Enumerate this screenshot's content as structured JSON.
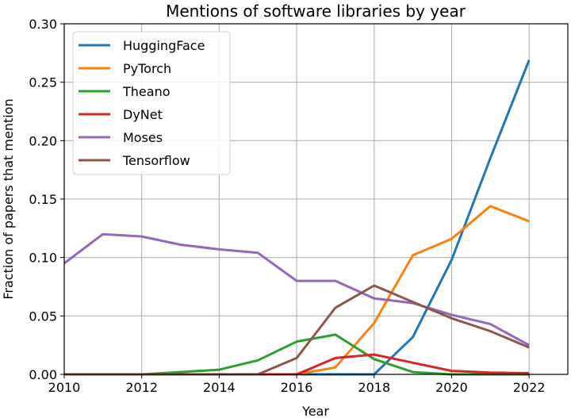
{
  "chart_data": {
    "type": "line",
    "title": "Mentions of software libraries by year",
    "xlabel": "Year",
    "ylabel": "Fraction of papers that mention",
    "x": [
      2010,
      2011,
      2012,
      2013,
      2014,
      2015,
      2016,
      2017,
      2018,
      2019,
      2020,
      2021,
      2022
    ],
    "xlim": [
      2010,
      2023
    ],
    "ylim": [
      0.0,
      0.3
    ],
    "xticks": [
      "2010",
      "2012",
      "2014",
      "2016",
      "2018",
      "2020",
      "2022"
    ],
    "yticks": [
      "0.00",
      "0.05",
      "0.10",
      "0.15",
      "0.20",
      "0.25",
      "0.30"
    ],
    "grid": true,
    "legend_position": "upper left",
    "series": [
      {
        "name": "HuggingFace",
        "color": "#1f77b4",
        "values": [
          0,
          0,
          0,
          0,
          0,
          0,
          0,
          0,
          0,
          0.032,
          0.098,
          0.185,
          0.269
        ]
      },
      {
        "name": "PyTorch",
        "color": "#ff7f0e",
        "values": [
          0,
          0,
          0,
          0,
          0,
          0,
          0,
          0.006,
          0.044,
          0.102,
          0.116,
          0.144,
          0.131
        ]
      },
      {
        "name": "Theano",
        "color": "#2ca02c",
        "values": [
          0,
          0,
          0,
          0.002,
          0.004,
          0.012,
          0.028,
          0.034,
          0.013,
          0.002,
          0.0,
          0.0,
          0.0
        ]
      },
      {
        "name": "DyNet",
        "color": "#d62728",
        "values": [
          0,
          0,
          0,
          0,
          0,
          0,
          0,
          0.014,
          0.017,
          0.01,
          0.003,
          0.0015,
          0.001
        ]
      },
      {
        "name": "Moses",
        "color": "#9467bd",
        "values": [
          0.095,
          0.12,
          0.118,
          0.111,
          0.107,
          0.104,
          0.08,
          0.08,
          0.065,
          0.061,
          0.051,
          0.043,
          0.025
        ]
      },
      {
        "name": "Tensorflow",
        "color": "#8c564b",
        "values": [
          0,
          0,
          0,
          0,
          0,
          0,
          0.014,
          0.057,
          0.076,
          0.062,
          0.048,
          0.037,
          0.023
        ]
      }
    ]
  }
}
